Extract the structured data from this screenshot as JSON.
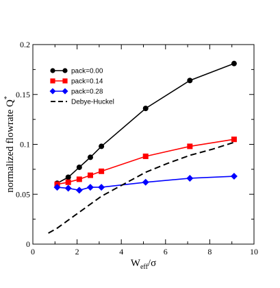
{
  "chart_data": {
    "type": "line",
    "xlabel_main": "W",
    "xlabel_sub": "eff",
    "xlabel_tail": "/σ",
    "ylabel_main": "normalized flowrate Q",
    "ylabel_sup": "*",
    "xlim": [
      0,
      10
    ],
    "ylim": [
      0,
      0.2
    ],
    "x_ticks": [
      0,
      2,
      4,
      6,
      8,
      10
    ],
    "y_ticks": [
      0,
      0.05,
      0.1,
      0.15,
      0.2
    ],
    "x_tick_labels": [
      "0",
      "2",
      "4",
      "6",
      "8",
      "10"
    ],
    "y_tick_labels": [
      "0",
      "0.05",
      "0.1",
      "0.15",
      "0.2"
    ],
    "grid": false,
    "legend_position": "upper-left",
    "series": [
      {
        "name": "pack=0.00",
        "color": "#000000",
        "marker": "circle",
        "dash": false,
        "x": [
          1.1,
          1.6,
          2.1,
          2.6,
          3.1,
          5.1,
          7.1,
          9.1
        ],
        "y": [
          0.061,
          0.067,
          0.077,
          0.087,
          0.098,
          0.136,
          0.164,
          0.181
        ]
      },
      {
        "name": "pack=0.14",
        "color": "#ff0000",
        "marker": "square",
        "dash": false,
        "x": [
          1.1,
          1.6,
          2.1,
          2.6,
          3.1,
          5.1,
          7.1,
          9.1
        ],
        "y": [
          0.06,
          0.062,
          0.065,
          0.069,
          0.073,
          0.088,
          0.098,
          0.105
        ]
      },
      {
        "name": "pack=0.28",
        "color": "#0000ff",
        "marker": "diamond",
        "dash": false,
        "x": [
          1.1,
          1.6,
          2.1,
          2.6,
          3.1,
          5.1,
          7.1,
          9.1
        ],
        "y": [
          0.057,
          0.056,
          0.054,
          0.057,
          0.057,
          0.062,
          0.066,
          0.068
        ]
      },
      {
        "name": "Debye-Huckel",
        "color": "#000000",
        "marker": "none",
        "dash": true,
        "x": [
          0.7,
          1.1,
          1.6,
          2.1,
          2.6,
          3.1,
          4.1,
          5.1,
          6.1,
          7.1,
          8.1,
          9.1
        ],
        "y": [
          0.011,
          0.016,
          0.024,
          0.032,
          0.04,
          0.048,
          0.06,
          0.072,
          0.081,
          0.089,
          0.095,
          0.102
        ]
      }
    ]
  }
}
